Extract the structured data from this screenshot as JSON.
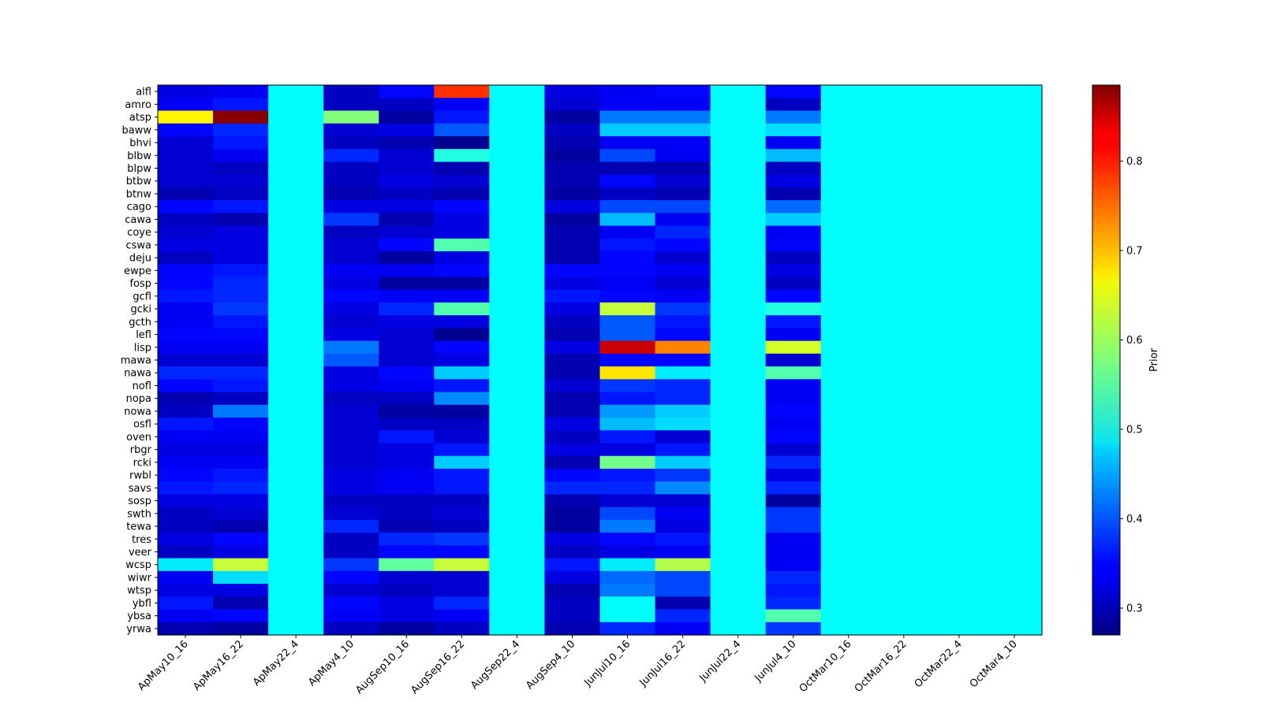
{
  "chart_data": {
    "type": "heatmap",
    "colormap": "jet",
    "colorbar_label": "Prior",
    "colorbar_range": [
      0.27,
      0.885
    ],
    "colorbar_ticks": [
      "0.3",
      "0.4",
      "0.5",
      "0.6",
      "0.7",
      "0.8"
    ],
    "columns": [
      "ApMay10_16",
      "ApMay16_22",
      "ApMay22_4",
      "ApMay4_10",
      "AugSep10_16",
      "AugSep16_22",
      "AugSep22_4",
      "AugSep4_10",
      "JunJul10_16",
      "JunJul16_22",
      "JunJul22_4",
      "JunJul4_10",
      "OctMar10_16",
      "OctMar16_22",
      "OctMar22_4",
      "OctMar4_10"
    ],
    "rows": [
      "alfl",
      "amro",
      "atsp",
      "baww",
      "bhvi",
      "blbw",
      "blpw",
      "btbw",
      "btnw",
      "cago",
      "cawa",
      "coye",
      "cswa",
      "deju",
      "ewpe",
      "fosp",
      "gcfl",
      "gcki",
      "gcth",
      "lefl",
      "lisp",
      "mawa",
      "nawa",
      "nofl",
      "nopa",
      "nowa",
      "osfl",
      "oven",
      "rbgr",
      "rcki",
      "rwbl",
      "savs",
      "sosp",
      "swth",
      "tewa",
      "tres",
      "veer",
      "wcsp",
      "wiwr",
      "wtsp",
      "ybfl",
      "ybsa",
      "yrwa"
    ],
    "values": [
      [
        0.33,
        0.34,
        0.5,
        0.31,
        0.35,
        0.78,
        0.5,
        0.33,
        0.34,
        0.35,
        0.5,
        0.35,
        0.5,
        0.5,
        0.5,
        0.5
      ],
      [
        0.34,
        0.36,
        0.5,
        0.31,
        0.31,
        0.34,
        0.5,
        0.32,
        0.34,
        0.34,
        0.5,
        0.31,
        0.5,
        0.5,
        0.5,
        0.5
      ],
      [
        0.66,
        0.88,
        0.5,
        0.58,
        0.29,
        0.36,
        0.5,
        0.29,
        0.42,
        0.42,
        0.5,
        0.42,
        0.5,
        0.5,
        0.5,
        0.5
      ],
      [
        0.35,
        0.37,
        0.5,
        0.32,
        0.33,
        0.4,
        0.5,
        0.31,
        0.47,
        0.47,
        0.5,
        0.48,
        0.5,
        0.5,
        0.5,
        0.5
      ],
      [
        0.32,
        0.36,
        0.5,
        0.31,
        0.3,
        0.28,
        0.5,
        0.3,
        0.34,
        0.34,
        0.5,
        0.34,
        0.5,
        0.5,
        0.5,
        0.5
      ],
      [
        0.32,
        0.34,
        0.5,
        0.37,
        0.32,
        0.52,
        0.5,
        0.29,
        0.39,
        0.34,
        0.5,
        0.46,
        0.5,
        0.5,
        0.5,
        0.5
      ],
      [
        0.32,
        0.31,
        0.5,
        0.31,
        0.32,
        0.3,
        0.5,
        0.3,
        0.3,
        0.3,
        0.5,
        0.31,
        0.5,
        0.5,
        0.5,
        0.5
      ],
      [
        0.32,
        0.32,
        0.5,
        0.31,
        0.33,
        0.32,
        0.5,
        0.3,
        0.35,
        0.32,
        0.5,
        0.33,
        0.5,
        0.5,
        0.5,
        0.5
      ],
      [
        0.3,
        0.31,
        0.5,
        0.3,
        0.31,
        0.3,
        0.5,
        0.29,
        0.31,
        0.3,
        0.5,
        0.3,
        0.5,
        0.5,
        0.5,
        0.5
      ],
      [
        0.35,
        0.36,
        0.5,
        0.33,
        0.33,
        0.35,
        0.5,
        0.33,
        0.39,
        0.39,
        0.5,
        0.41,
        0.5,
        0.5,
        0.5,
        0.5
      ],
      [
        0.31,
        0.3,
        0.5,
        0.38,
        0.3,
        0.33,
        0.5,
        0.29,
        0.46,
        0.34,
        0.5,
        0.47,
        0.5,
        0.5,
        0.5,
        0.5
      ],
      [
        0.32,
        0.33,
        0.5,
        0.31,
        0.32,
        0.33,
        0.5,
        0.3,
        0.34,
        0.37,
        0.5,
        0.34,
        0.5,
        0.5,
        0.5,
        0.5
      ],
      [
        0.33,
        0.33,
        0.5,
        0.32,
        0.35,
        0.55,
        0.5,
        0.3,
        0.36,
        0.35,
        0.5,
        0.35,
        0.5,
        0.5,
        0.5,
        0.5
      ],
      [
        0.31,
        0.33,
        0.5,
        0.32,
        0.29,
        0.33,
        0.5,
        0.3,
        0.35,
        0.32,
        0.5,
        0.31,
        0.5,
        0.5,
        0.5,
        0.5
      ],
      [
        0.35,
        0.36,
        0.5,
        0.34,
        0.34,
        0.35,
        0.5,
        0.35,
        0.35,
        0.34,
        0.5,
        0.33,
        0.5,
        0.5,
        0.5,
        0.5
      ],
      [
        0.35,
        0.37,
        0.5,
        0.33,
        0.29,
        0.29,
        0.5,
        0.33,
        0.34,
        0.32,
        0.5,
        0.31,
        0.5,
        0.5,
        0.5,
        0.5
      ],
      [
        0.36,
        0.37,
        0.5,
        0.35,
        0.34,
        0.34,
        0.5,
        0.36,
        0.35,
        0.34,
        0.5,
        0.35,
        0.5,
        0.5,
        0.5,
        0.5
      ],
      [
        0.34,
        0.38,
        0.5,
        0.33,
        0.37,
        0.55,
        0.5,
        0.33,
        0.62,
        0.38,
        0.5,
        0.52,
        0.5,
        0.5,
        0.5,
        0.5
      ],
      [
        0.34,
        0.36,
        0.5,
        0.32,
        0.33,
        0.33,
        0.5,
        0.31,
        0.4,
        0.36,
        0.5,
        0.36,
        0.5,
        0.5,
        0.5,
        0.5
      ],
      [
        0.35,
        0.35,
        0.5,
        0.33,
        0.32,
        0.28,
        0.5,
        0.3,
        0.4,
        0.35,
        0.5,
        0.34,
        0.5,
        0.5,
        0.5,
        0.5
      ],
      [
        0.34,
        0.34,
        0.5,
        0.42,
        0.32,
        0.35,
        0.5,
        0.33,
        0.84,
        0.73,
        0.5,
        0.63,
        0.5,
        0.5,
        0.5,
        0.5
      ],
      [
        0.32,
        0.32,
        0.5,
        0.4,
        0.32,
        0.33,
        0.5,
        0.3,
        0.35,
        0.35,
        0.5,
        0.32,
        0.5,
        0.5,
        0.5,
        0.5
      ],
      [
        0.37,
        0.37,
        0.5,
        0.33,
        0.35,
        0.47,
        0.5,
        0.3,
        0.67,
        0.49,
        0.5,
        0.55,
        0.5,
        0.5,
        0.5,
        0.5
      ],
      [
        0.35,
        0.36,
        0.5,
        0.33,
        0.34,
        0.36,
        0.5,
        0.32,
        0.38,
        0.37,
        0.5,
        0.34,
        0.5,
        0.5,
        0.5,
        0.5
      ],
      [
        0.3,
        0.31,
        0.5,
        0.31,
        0.31,
        0.43,
        0.5,
        0.3,
        0.36,
        0.37,
        0.5,
        0.34,
        0.5,
        0.5,
        0.5,
        0.5
      ],
      [
        0.31,
        0.42,
        0.5,
        0.32,
        0.29,
        0.29,
        0.5,
        0.3,
        0.44,
        0.47,
        0.5,
        0.35,
        0.5,
        0.5,
        0.5,
        0.5
      ],
      [
        0.36,
        0.35,
        0.5,
        0.32,
        0.31,
        0.31,
        0.5,
        0.33,
        0.46,
        0.48,
        0.5,
        0.34,
        0.5,
        0.5,
        0.5,
        0.5
      ],
      [
        0.34,
        0.34,
        0.5,
        0.32,
        0.36,
        0.32,
        0.5,
        0.31,
        0.36,
        0.32,
        0.5,
        0.35,
        0.5,
        0.5,
        0.5,
        0.5
      ],
      [
        0.33,
        0.33,
        0.5,
        0.32,
        0.33,
        0.36,
        0.5,
        0.33,
        0.33,
        0.36,
        0.5,
        0.32,
        0.5,
        0.5,
        0.5,
        0.5
      ],
      [
        0.34,
        0.34,
        0.5,
        0.32,
        0.33,
        0.47,
        0.5,
        0.3,
        0.57,
        0.47,
        0.5,
        0.37,
        0.5,
        0.5,
        0.5,
        0.5
      ],
      [
        0.35,
        0.36,
        0.5,
        0.33,
        0.34,
        0.36,
        0.5,
        0.35,
        0.36,
        0.38,
        0.5,
        0.33,
        0.5,
        0.5,
        0.5,
        0.5
      ],
      [
        0.36,
        0.37,
        0.5,
        0.33,
        0.34,
        0.36,
        0.5,
        0.37,
        0.37,
        0.43,
        0.5,
        0.37,
        0.5,
        0.5,
        0.5,
        0.5
      ],
      [
        0.33,
        0.33,
        0.5,
        0.31,
        0.31,
        0.31,
        0.5,
        0.3,
        0.32,
        0.32,
        0.5,
        0.29,
        0.5,
        0.5,
        0.5,
        0.5
      ],
      [
        0.31,
        0.32,
        0.5,
        0.32,
        0.31,
        0.32,
        0.5,
        0.29,
        0.39,
        0.34,
        0.5,
        0.38,
        0.5,
        0.5,
        0.5,
        0.5
      ],
      [
        0.31,
        0.3,
        0.5,
        0.37,
        0.3,
        0.31,
        0.5,
        0.29,
        0.42,
        0.33,
        0.5,
        0.38,
        0.5,
        0.5,
        0.5,
        0.5
      ],
      [
        0.33,
        0.35,
        0.5,
        0.31,
        0.37,
        0.38,
        0.5,
        0.33,
        0.35,
        0.36,
        0.5,
        0.34,
        0.5,
        0.5,
        0.5,
        0.5
      ],
      [
        0.31,
        0.33,
        0.5,
        0.31,
        0.35,
        0.35,
        0.5,
        0.31,
        0.33,
        0.34,
        0.5,
        0.34,
        0.5,
        0.5,
        0.5,
        0.5
      ],
      [
        0.49,
        0.62,
        0.5,
        0.38,
        0.56,
        0.62,
        0.5,
        0.36,
        0.49,
        0.61,
        0.5,
        0.34,
        0.5,
        0.5,
        0.5,
        0.5
      ],
      [
        0.34,
        0.48,
        0.5,
        0.35,
        0.32,
        0.32,
        0.5,
        0.33,
        0.41,
        0.39,
        0.5,
        0.37,
        0.5,
        0.5,
        0.5,
        0.5
      ],
      [
        0.33,
        0.33,
        0.5,
        0.32,
        0.31,
        0.32,
        0.5,
        0.3,
        0.42,
        0.39,
        0.5,
        0.36,
        0.5,
        0.5,
        0.5,
        0.5
      ],
      [
        0.36,
        0.3,
        0.5,
        0.35,
        0.33,
        0.37,
        0.5,
        0.31,
        0.5,
        0.3,
        0.5,
        0.37,
        0.5,
        0.5,
        0.5,
        0.5
      ],
      [
        0.34,
        0.35,
        0.5,
        0.34,
        0.33,
        0.34,
        0.5,
        0.31,
        0.5,
        0.37,
        0.5,
        0.55,
        0.5,
        0.5,
        0.5,
        0.5
      ],
      [
        0.3,
        0.29,
        0.5,
        0.31,
        0.29,
        0.31,
        0.5,
        0.3,
        0.37,
        0.34,
        0.5,
        0.38,
        0.5,
        0.5,
        0.5,
        0.5
      ]
    ]
  }
}
